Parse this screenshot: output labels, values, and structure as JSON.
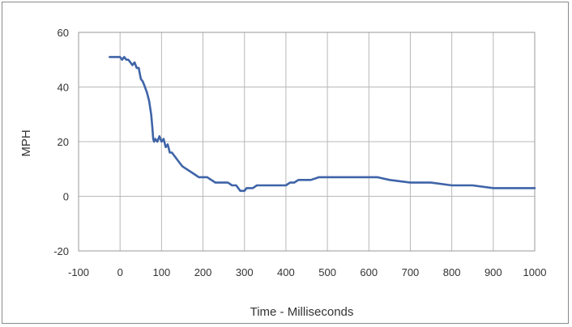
{
  "chart_data": {
    "type": "line",
    "title": "",
    "xlabel": "Time - Milliseconds",
    "ylabel": "MPH",
    "xlim": [
      -100,
      1000
    ],
    "ylim": [
      -20,
      60
    ],
    "x_ticks": [
      "-100",
      "0",
      "100",
      "200",
      "300",
      "400",
      "500",
      "600",
      "700",
      "800",
      "900",
      "1000"
    ],
    "y_ticks": [
      "60",
      "40",
      "20",
      "0",
      "-20"
    ],
    "grid": true,
    "legend": "none",
    "line_color": "#3f64a8",
    "series": [
      {
        "x": [
          -25,
          -5,
          0,
          5,
          10,
          15,
          20,
          25,
          30,
          35,
          40,
          45,
          50,
          55,
          60,
          65,
          70,
          75,
          78,
          80,
          82,
          85,
          90,
          95,
          100,
          105,
          110,
          115,
          120,
          125,
          130,
          140,
          150,
          160,
          170,
          180,
          190,
          200,
          210,
          220,
          230,
          240,
          250,
          260,
          270,
          280,
          285,
          290,
          295,
          300,
          305,
          310,
          320,
          330,
          340,
          350,
          360,
          370,
          380,
          390,
          400,
          410,
          420,
          430,
          440,
          450,
          460,
          480,
          500,
          520,
          550,
          580,
          600,
          620,
          650,
          700,
          750,
          800,
          850,
          900,
          950,
          1000
        ],
        "y": [
          51,
          51,
          51,
          50,
          51,
          50,
          50,
          49,
          48,
          49,
          47,
          47,
          43,
          42,
          40,
          38,
          35,
          30,
          25,
          21,
          20,
          21,
          20,
          22,
          20,
          21,
          18,
          19,
          16,
          16,
          15,
          13,
          11,
          10,
          9,
          8,
          7,
          7,
          7,
          6,
          5,
          5,
          5,
          5,
          4,
          4,
          3,
          2,
          2,
          2,
          3,
          3,
          3,
          4,
          4,
          4,
          4,
          4,
          4,
          4,
          4,
          5,
          5,
          6,
          6,
          6,
          6,
          7,
          7,
          7,
          7,
          7,
          7,
          7,
          6,
          5,
          5,
          4,
          4,
          3,
          3,
          3
        ]
      }
    ]
  }
}
